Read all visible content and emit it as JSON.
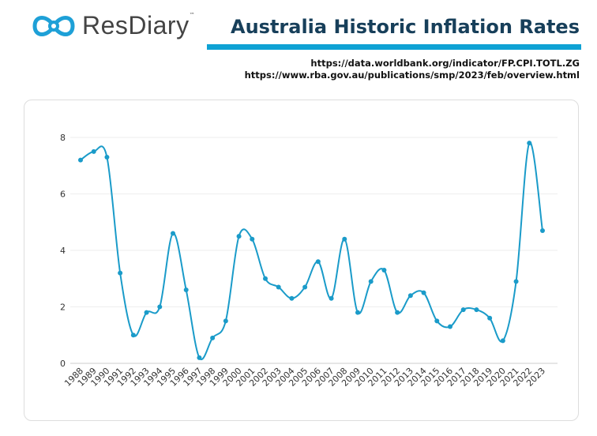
{
  "brand": {
    "name": "ResDiary",
    "trademark": "™",
    "color": "#1ea0d7"
  },
  "header": {
    "title": "Australia Historic Inflation Rates",
    "accent": "#0ea2d4"
  },
  "sources": [
    "https://data.worldbank.org/indicator/FP.CPI.TOTL.ZG",
    "https://www.rba.gov.au/publications/smp/2023/feb/overview.html"
  ],
  "chart_data": {
    "type": "line",
    "smooth": true,
    "color": "#1a9bc9",
    "x": [
      "1988",
      "1989",
      "1990",
      "1991",
      "1992",
      "1993",
      "1994",
      "1995",
      "1996",
      "1997",
      "1998",
      "1999",
      "2000",
      "2001",
      "2002",
      "2003",
      "2004",
      "2005",
      "2006",
      "2007",
      "2008",
      "2009",
      "2010",
      "2011",
      "2012",
      "2013",
      "2014",
      "2015",
      "2016",
      "2017",
      "2018",
      "2019",
      "2020",
      "2021",
      "2022",
      "2023"
    ],
    "values": [
      7.2,
      7.5,
      7.3,
      3.2,
      1.0,
      1.8,
      2.0,
      4.6,
      2.6,
      0.2,
      0.9,
      1.5,
      4.5,
      4.4,
      3.0,
      2.7,
      2.3,
      2.7,
      3.6,
      2.3,
      4.4,
      1.8,
      2.9,
      3.3,
      1.8,
      2.4,
      2.5,
      1.5,
      1.3,
      1.9,
      1.9,
      1.6,
      0.8,
      2.9,
      7.8,
      4.7
    ],
    "yticks": [
      "0",
      "2",
      "4",
      "6",
      "8"
    ],
    "ylim": [
      0,
      8
    ],
    "grid": true
  }
}
